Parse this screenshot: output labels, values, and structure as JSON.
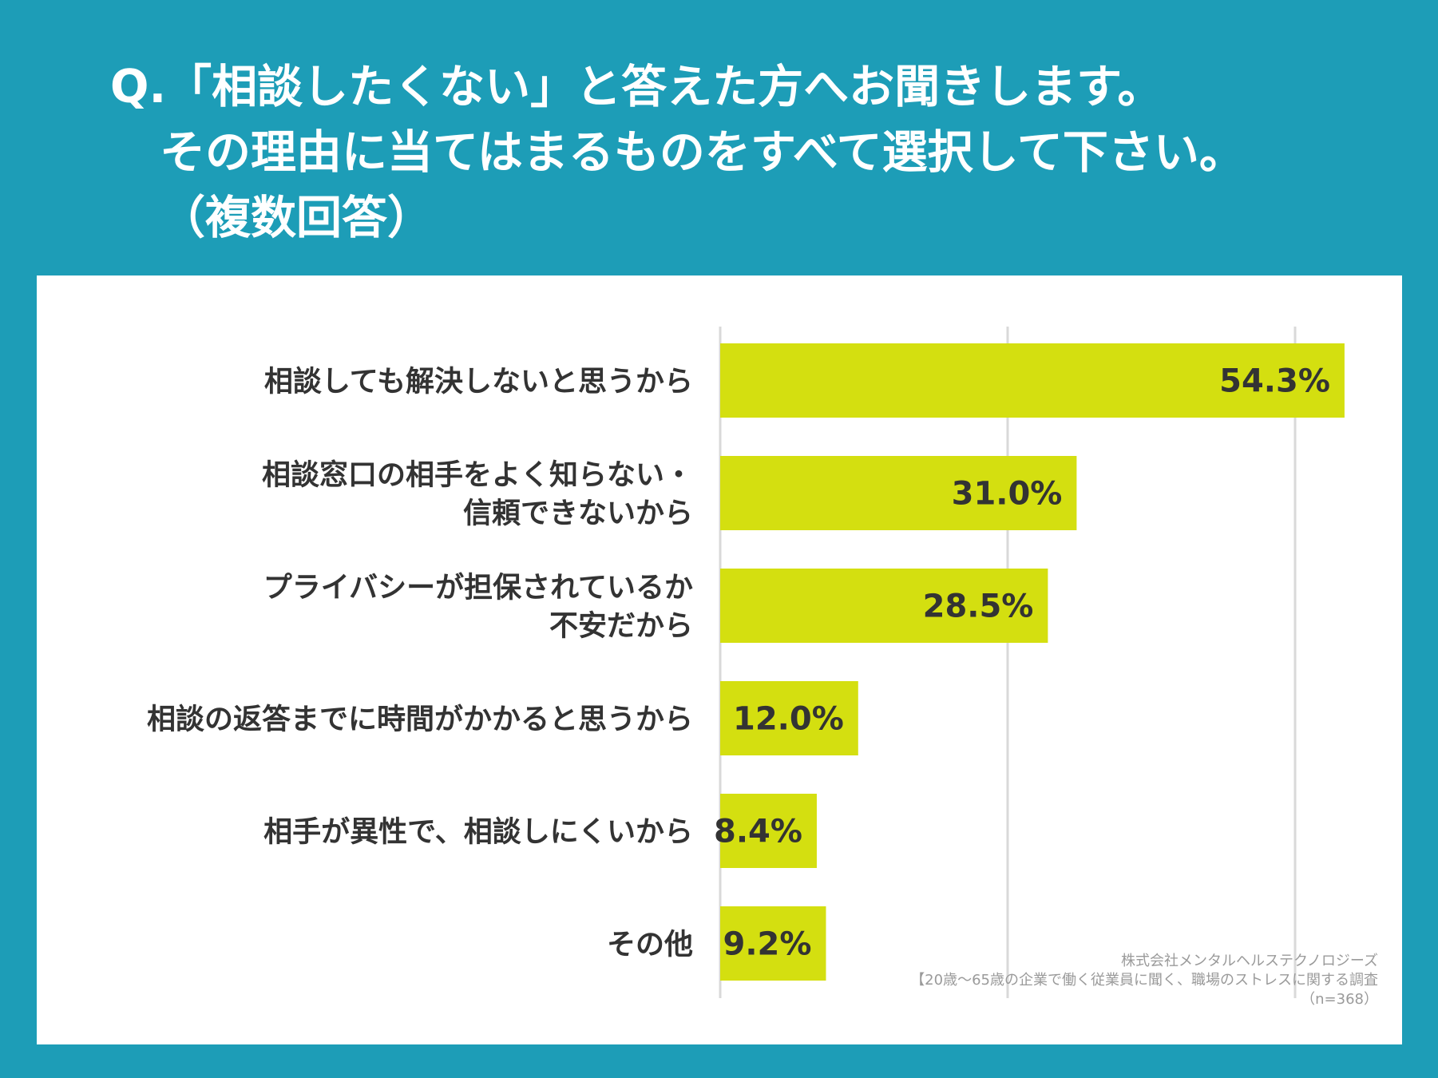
{
  "title": {
    "line1": "Q.「相談したくない」と答えた方へお聞きします。",
    "line2": "その理由に当てはまるものをすべて選択して下さい。",
    "line3": "（複数回答）"
  },
  "source": {
    "line1": "株式会社メンタルヘルステクノロジーズ",
    "line2": "【20歳〜65歳の企業で働く従業員に聞く、職場のストレスに関する調査",
    "line3": "（n=368）"
  },
  "colors": {
    "background": "#1d9db7",
    "panel": "#ffffff",
    "bar": "#d4df10",
    "grid": "#d9d9d9",
    "text": "#333333"
  },
  "chart_data": {
    "type": "bar",
    "orientation": "horizontal",
    "categories": [
      [
        "相談しても解決しないと思うから"
      ],
      [
        "相談窓口の相手をよく知らない・",
        "信頼できないから"
      ],
      [
        "プライバシーが担保されているか",
        "不安だから"
      ],
      [
        "相談の返答までに時間がかかると思うから"
      ],
      [
        "相手が異性で、相談しにくいから"
      ],
      [
        "その他"
      ]
    ],
    "values": [
      54.3,
      31.0,
      28.5,
      12.0,
      8.4,
      9.2
    ],
    "value_labels": [
      "54.3%",
      "31.0%",
      "28.5%",
      "12.0%",
      "8.4%",
      "9.2%"
    ],
    "xlim": [
      0,
      60
    ],
    "grid_values": [
      0,
      25,
      50
    ],
    "grid": true,
    "legend": "none"
  }
}
